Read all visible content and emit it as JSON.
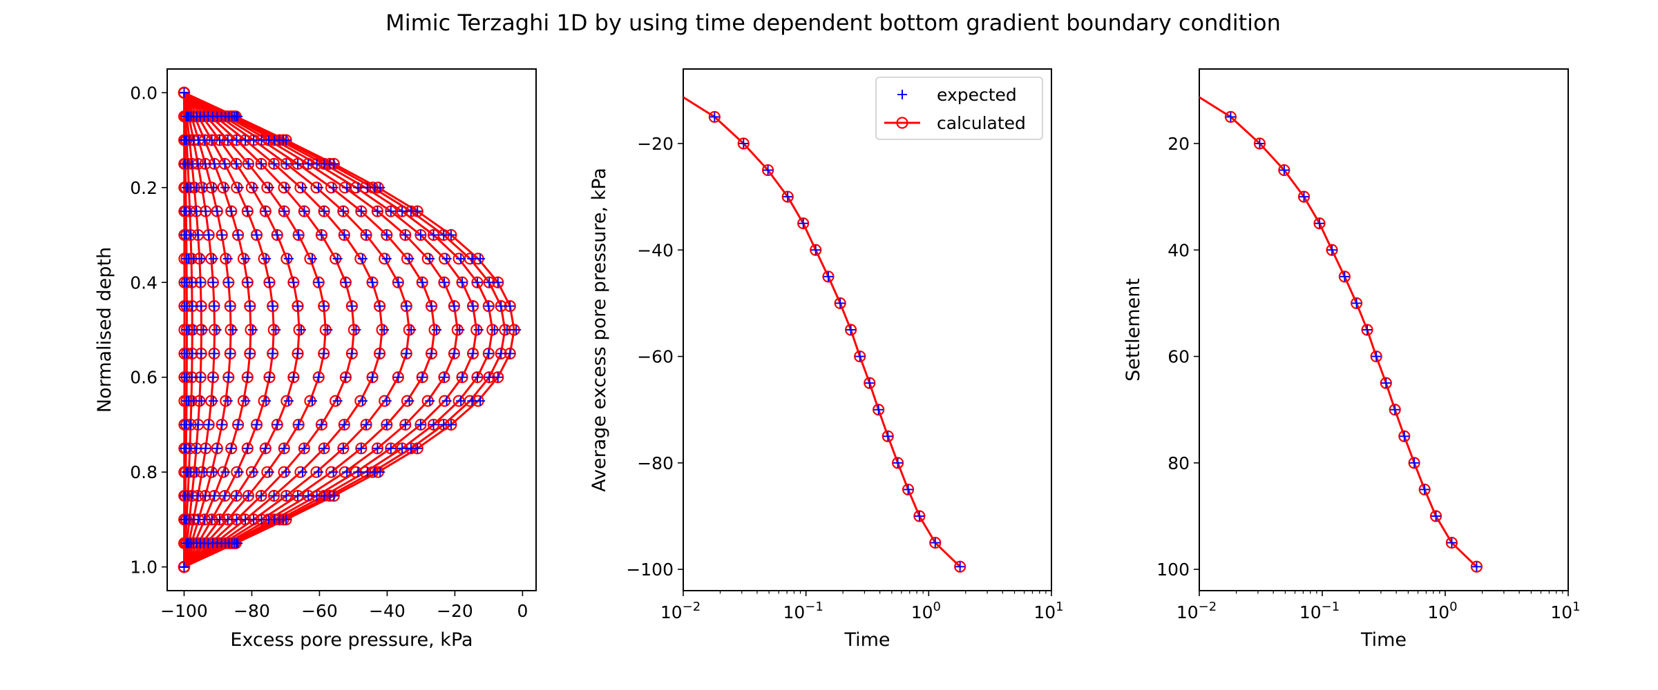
{
  "figure_title": "Mimic Terzaghi 1D by using time dependent bottom gradient boundary condition",
  "colors": {
    "expected": "#0000ff",
    "calculated": "#ff0000",
    "axes": "#000000",
    "background": "#ffffff"
  },
  "chart_data": [
    {
      "type": "line",
      "panel": "isochrones",
      "title": "",
      "xlabel": "Excess pore pressure, kPa",
      "ylabel": "Normalised depth",
      "xlim": [
        -105,
        4
      ],
      "ylim": [
        1.05,
        -0.05
      ],
      "y_inverted": true,
      "x_scale": "linear",
      "xticks": [
        -100,
        -80,
        -60,
        -40,
        -20,
        0
      ],
      "xtick_labels": [
        "−100",
        "−80",
        "−60",
        "−40",
        "−20",
        "0"
      ],
      "yticks": [
        0.0,
        0.2,
        0.4,
        0.6,
        0.8,
        1.0
      ],
      "ytick_labels": [
        "0.0",
        "0.2",
        "0.4",
        "0.6",
        "0.8",
        "1.0"
      ],
      "grid": false,
      "legend": "none",
      "depth": [
        0,
        0.05,
        0.1,
        0.15,
        0.2,
        0.25,
        0.3,
        0.35,
        0.4,
        0.45,
        0.5,
        0.55,
        0.6,
        0.65,
        0.7,
        0.75,
        0.8,
        0.85,
        0.9,
        0.95,
        1.0
      ],
      "isochrone_count": 19,
      "isochrone_mid_pressure": [
        -99.9,
        -99.2,
        -97.6,
        -94.9,
        -91.0,
        -86.2,
        -80.3,
        -73.5,
        -66.0,
        -58.2,
        -49.8,
        -41.5,
        -33.5,
        -26.0,
        -19.2,
        -13.6,
        -8.9,
        -5.2,
        -2.5
      ],
      "series": [
        {
          "name": "expected",
          "style": "plus-marker"
        },
        {
          "name": "calculated",
          "style": "line-circle"
        }
      ]
    },
    {
      "type": "line",
      "panel": "average-pore-pressure",
      "title": "",
      "xlabel": "Time",
      "ylabel": "Average excess pore pressure, kPa",
      "x_scale": "log",
      "xlim": [
        0.01,
        10
      ],
      "ylim": [
        -104,
        -6
      ],
      "xticks": [
        0.01,
        0.1,
        1,
        10
      ],
      "xtick_labels": [
        {
          "base": "10",
          "exp": "−2"
        },
        {
          "base": "10",
          "exp": "−1"
        },
        {
          "base": "10",
          "exp": "0"
        },
        {
          "base": "10",
          "exp": "1"
        }
      ],
      "yticks": [
        -20,
        -40,
        -60,
        -80,
        -100
      ],
      "ytick_labels": [
        "−20",
        "−40",
        "−60",
        "−80",
        "−100"
      ],
      "grid": false,
      "legend": "top-right",
      "series": [
        {
          "name": "expected",
          "style": "plus-marker",
          "x": [
            0.018,
            0.031,
            0.049,
            0.071,
            0.095,
            0.12,
            0.152,
            0.19,
            0.232,
            0.275,
            0.33,
            0.39,
            0.465,
            0.56,
            0.68,
            0.84,
            1.13,
            1.8
          ],
          "y": [
            -15,
            -20,
            -25,
            -30,
            -35,
            -40,
            -45,
            -50,
            -55,
            -60,
            -65,
            -70,
            -75,
            -80,
            -85,
            -90,
            -95,
            -99.5
          ]
        },
        {
          "name": "calculated",
          "style": "line-circle",
          "x": [
            0.01,
            0.018,
            0.031,
            0.049,
            0.071,
            0.095,
            0.12,
            0.152,
            0.19,
            0.232,
            0.275,
            0.33,
            0.39,
            0.465,
            0.56,
            0.68,
            0.84,
            1.13,
            1.8
          ],
          "y": [
            -11.3,
            -15,
            -20,
            -25,
            -30,
            -35,
            -40,
            -45,
            -50,
            -55,
            -60,
            -65,
            -70,
            -75,
            -80,
            -85,
            -90,
            -95,
            -99.5
          ],
          "marker_start_index": 1
        }
      ]
    },
    {
      "type": "line",
      "panel": "settlement",
      "title": "",
      "xlabel": "Time",
      "ylabel": "Settlement",
      "x_scale": "log",
      "xlim": [
        0.01,
        10
      ],
      "ylim": [
        104,
        6
      ],
      "y_inverted": true,
      "xticks": [
        0.01,
        0.1,
        1,
        10
      ],
      "xtick_labels": [
        {
          "base": "10",
          "exp": "−2"
        },
        {
          "base": "10",
          "exp": "−1"
        },
        {
          "base": "10",
          "exp": "0"
        },
        {
          "base": "10",
          "exp": "1"
        }
      ],
      "yticks": [
        20,
        40,
        60,
        80,
        100
      ],
      "ytick_labels": [
        "20",
        "40",
        "60",
        "80",
        "100"
      ],
      "grid": false,
      "legend": "none",
      "series": [
        {
          "name": "expected",
          "style": "plus-marker",
          "x": [
            0.018,
            0.031,
            0.049,
            0.071,
            0.095,
            0.12,
            0.152,
            0.19,
            0.232,
            0.275,
            0.33,
            0.39,
            0.465,
            0.56,
            0.68,
            0.84,
            1.13,
            1.8
          ],
          "y": [
            15,
            20,
            25,
            30,
            35,
            40,
            45,
            50,
            55,
            60,
            65,
            70,
            75,
            80,
            85,
            90,
            95,
            99.5
          ]
        },
        {
          "name": "calculated",
          "style": "line-circle",
          "x": [
            0.01,
            0.018,
            0.031,
            0.049,
            0.071,
            0.095,
            0.12,
            0.152,
            0.19,
            0.232,
            0.275,
            0.33,
            0.39,
            0.465,
            0.56,
            0.68,
            0.84,
            1.13,
            1.8
          ],
          "y": [
            11.3,
            15,
            20,
            25,
            30,
            35,
            40,
            45,
            50,
            55,
            60,
            65,
            70,
            75,
            80,
            85,
            90,
            95,
            99.5
          ],
          "marker_start_index": 1
        }
      ]
    }
  ]
}
